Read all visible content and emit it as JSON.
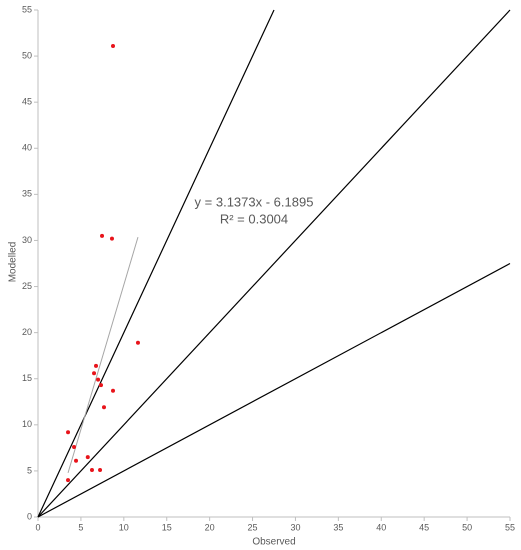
{
  "chart_data": {
    "type": "scatter",
    "x_label": "Observed",
    "y_label": "Modelled",
    "x": [
      8.74,
      7.46,
      8.62,
      11.65,
      6.76,
      6.53,
      7.0,
      7.34,
      8.74,
      7.69,
      3.5,
      4.2,
      5.8,
      4.43,
      6.29,
      7.23,
      3.5
    ],
    "values": [
      51.1,
      30.5,
      30.2,
      18.9,
      16.4,
      15.6,
      14.9,
      14.3,
      13.7,
      11.9,
      9.2,
      7.6,
      6.5,
      6.1,
      5.1,
      5.1,
      4.0
    ],
    "color": "#e8141b",
    "xlim": [
      0,
      55
    ],
    "ylim": [
      0,
      55
    ],
    "xticks": [
      0,
      5,
      10,
      15,
      20,
      25,
      30,
      35,
      40,
      45,
      50,
      55
    ],
    "yticks": [
      0,
      5,
      10,
      15,
      20,
      25,
      30,
      35,
      40,
      45,
      50,
      55
    ],
    "reference_lines": [
      {
        "slope": 2,
        "color": "#000000"
      },
      {
        "slope": 1,
        "color": "#000000"
      },
      {
        "slope": 0.5,
        "color": "#000000"
      }
    ],
    "trendline": {
      "slope": 3.1373,
      "intercept": -6.1895,
      "x_range": [
        3.5,
        11.65
      ],
      "color": "#a6a6a6",
      "equation": "y = 3.1373x - 6.1895",
      "r_squared": "R² = 0.3004"
    }
  }
}
